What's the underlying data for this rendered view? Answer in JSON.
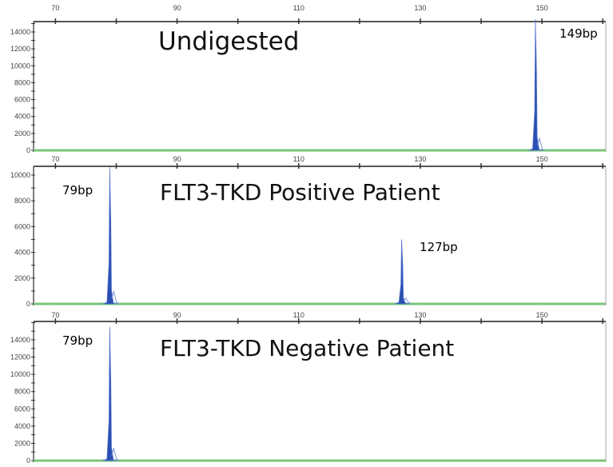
{
  "chart_data": [
    {
      "type": "line",
      "title": "Undigested",
      "xlim": [
        66.4,
        160.5
      ],
      "ylim": [
        0,
        15230
      ],
      "xticks": [
        70,
        90,
        110,
        130,
        150
      ],
      "yticks": [
        0,
        2000,
        4000,
        6000,
        8000,
        10000,
        12000,
        14000
      ],
      "peaks": [
        {
          "size": 149,
          "height": 15500,
          "label": "149bp"
        }
      ],
      "colors": {
        "peak": "#2a4fb0",
        "baseline": "#7cc47c"
      }
    },
    {
      "type": "line",
      "title": "FLT3-TKD Positive Patient",
      "xlim": [
        66.4,
        160.5
      ],
      "ylim": [
        0,
        10680
      ],
      "xticks": [
        70,
        90,
        110,
        130,
        150
      ],
      "yticks": [
        0,
        2000,
        4000,
        6000,
        8000,
        10000
      ],
      "peaks": [
        {
          "size": 79,
          "height": 10600,
          "label": "79bp"
        },
        {
          "size": 127,
          "height": 5000,
          "label": "127bp"
        }
      ],
      "colors": {
        "peak": "#2a4fb0",
        "baseline": "#7cc47c"
      }
    },
    {
      "type": "line",
      "title": "FLT3-TKD Negative Patient",
      "xlim": [
        66.4,
        160.5
      ],
      "ylim": [
        0,
        16130
      ],
      "xticks": [
        70,
        90,
        110,
        130,
        150
      ],
      "yticks": [
        0,
        2000,
        4000,
        6000,
        8000,
        10000,
        12000,
        14000
      ],
      "peaks": [
        {
          "size": 79,
          "height": 15500,
          "label": "79bp"
        }
      ],
      "colors": {
        "peak": "#2a4fb0",
        "baseline": "#7cc47c"
      }
    }
  ]
}
